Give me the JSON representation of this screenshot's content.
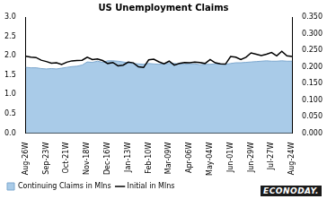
{
  "chart_data": {
    "type": "line",
    "title": "US Unemployment Claims",
    "annotations": [
      "ECONODAY."
    ],
    "categories": [
      "Aug-26W",
      null,
      null,
      null,
      "Sep-23W",
      null,
      null,
      null,
      "Oct-21W",
      null,
      null,
      null,
      "Nov-18W",
      null,
      null,
      null,
      "Dec-16W",
      null,
      null,
      null,
      "Jan-13W",
      null,
      null,
      null,
      "Feb-10W",
      null,
      null,
      null,
      "Mar-09W",
      null,
      null,
      null,
      "Apr-06W",
      null,
      null,
      null,
      "May-04W",
      null,
      null,
      null,
      "Jun-01W",
      null,
      null,
      null,
      "Jun-29W",
      null,
      null,
      null,
      "Jul-27W",
      null,
      null,
      null,
      "Aug-24W"
    ],
    "series": [
      {
        "name": "Continuing Claims in Mlns",
        "type": "area",
        "color": "#a9cbe8",
        "values": [
          1.7,
          1.69,
          1.69,
          1.67,
          1.66,
          1.67,
          1.66,
          1.68,
          1.7,
          1.72,
          1.73,
          1.76,
          1.84,
          1.83,
          1.86,
          1.83,
          1.87,
          1.87,
          1.86,
          1.84,
          1.82,
          1.8,
          1.79,
          1.78,
          1.8,
          1.79,
          1.78,
          1.79,
          1.8,
          1.8,
          1.79,
          1.78,
          1.79,
          1.79,
          1.77,
          1.78,
          1.78,
          1.79,
          1.79,
          1.78,
          1.8,
          1.82,
          1.82,
          1.83,
          1.84,
          1.85,
          1.86,
          1.87,
          1.86,
          1.86,
          1.87,
          1.86,
          1.86
        ]
      },
      {
        "name": "Initial in Mlns",
        "type": "line",
        "color": "#000000",
        "axis": "y2",
        "values": [
          0.232,
          0.229,
          0.228,
          0.22,
          0.216,
          0.211,
          0.212,
          0.207,
          0.214,
          0.218,
          0.219,
          0.22,
          0.229,
          0.222,
          0.224,
          0.219,
          0.21,
          0.213,
          0.203,
          0.205,
          0.214,
          0.212,
          0.2,
          0.198,
          0.221,
          0.223,
          0.215,
          0.209,
          0.217,
          0.205,
          0.21,
          0.213,
          0.212,
          0.214,
          0.213,
          0.21,
          0.222,
          0.212,
          0.209,
          0.208,
          0.231,
          0.229,
          0.222,
          0.229,
          0.242,
          0.238,
          0.234,
          0.238,
          0.243,
          0.233,
          0.247,
          0.233,
          0.231
        ]
      }
    ],
    "ylim": [
      0,
      3.0
    ],
    "yticks": [
      {
        "value": 0,
        "label": "0.0"
      },
      {
        "value": 0.5,
        "label": "0.5"
      },
      {
        "value": 1.0,
        "label": "1.0"
      },
      {
        "value": 1.5,
        "label": "1.5"
      },
      {
        "value": 2.0,
        "label": "2.0"
      },
      {
        "value": 2.5,
        "label": "2.5"
      },
      {
        "value": 3.0,
        "label": "3.0"
      }
    ],
    "y2lim": [
      0,
      0.35
    ],
    "y2ticks": [
      {
        "value": 0,
        "label": "0.000"
      },
      {
        "value": 0.05,
        "label": "0.050"
      },
      {
        "value": 0.1,
        "label": "0.100"
      },
      {
        "value": 0.15,
        "label": "0.150"
      },
      {
        "value": 0.2,
        "label": "0.200"
      },
      {
        "value": 0.25,
        "label": "0.250"
      },
      {
        "value": 0.3,
        "label": "0.300"
      },
      {
        "value": 0.35,
        "label": "0.350"
      }
    ],
    "grid": false,
    "legend": "bottom"
  }
}
